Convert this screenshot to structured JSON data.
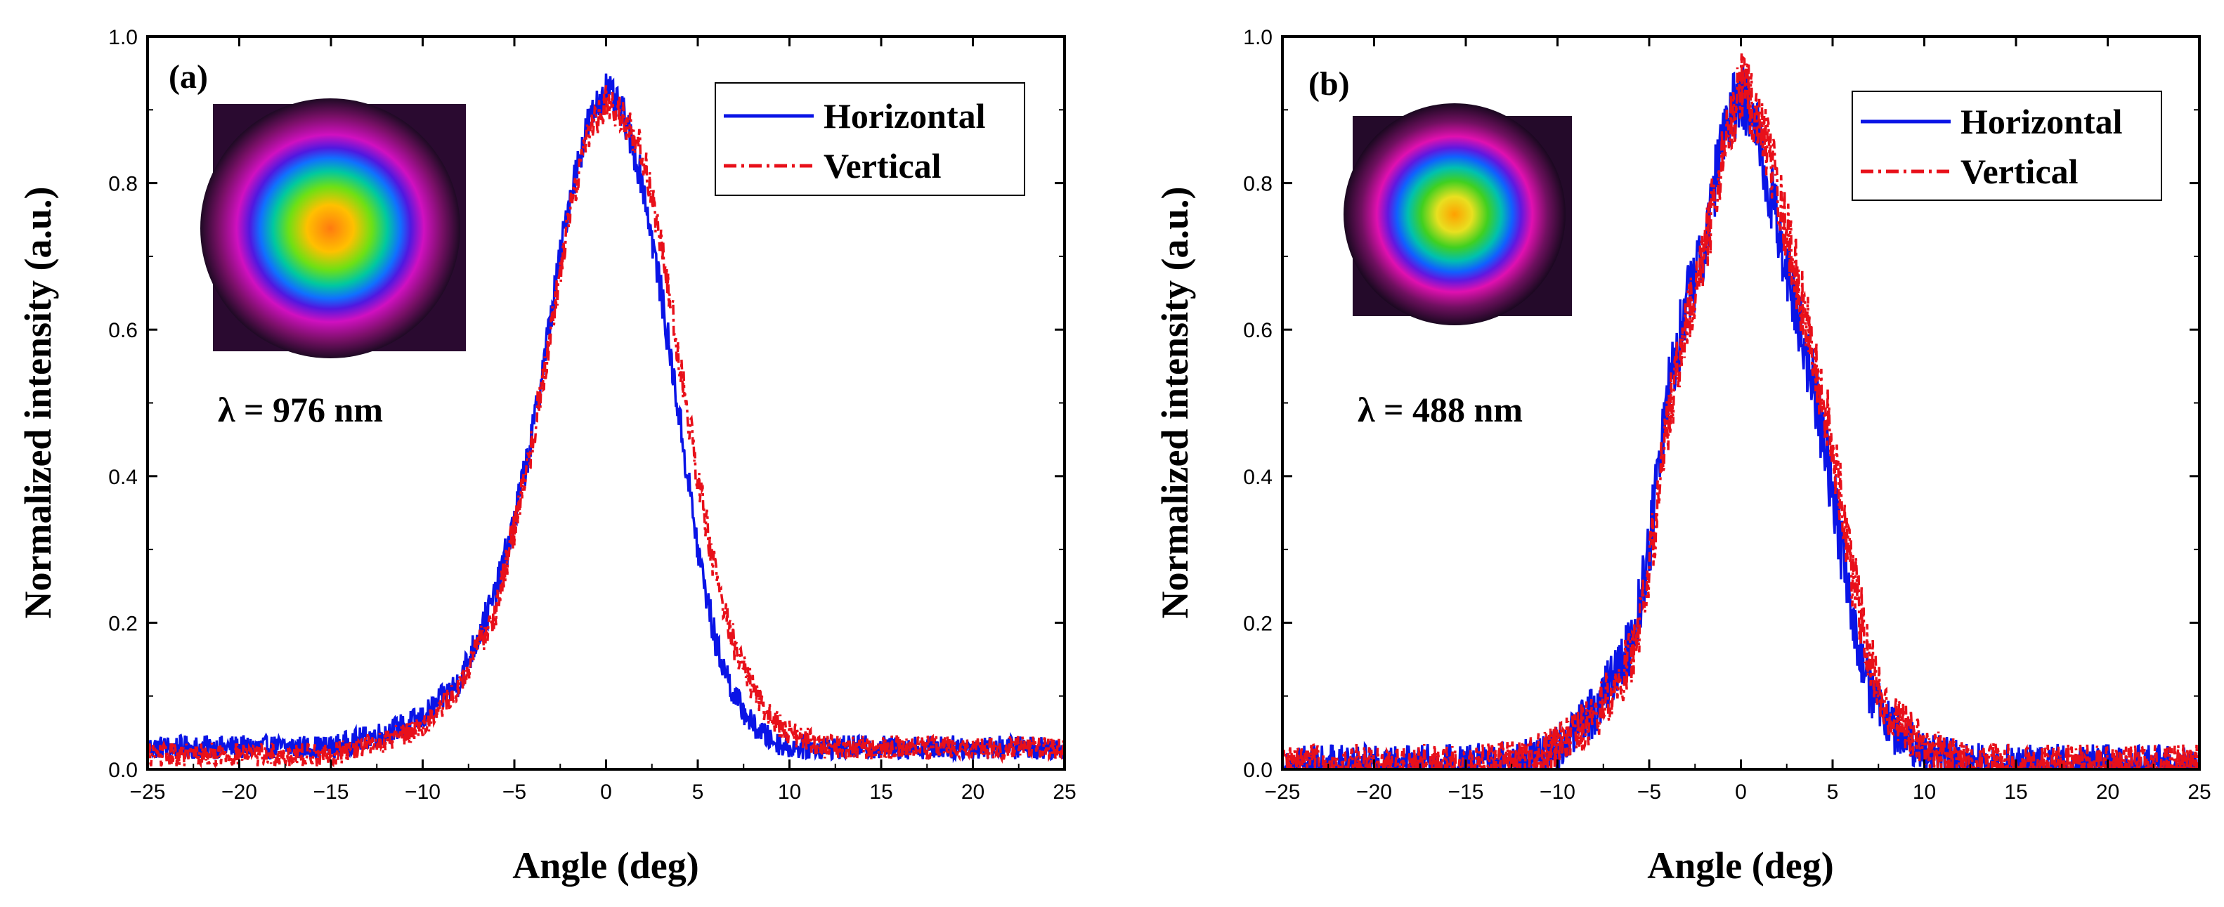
{
  "chart_data": [
    {
      "type": "line",
      "panel_label": "(a)",
      "annotation": "λ = 976 nm",
      "xlabel": "Angle (deg)",
      "ylabel": "Normalized intensity (a.u.)",
      "xlim": [
        -25,
        25
      ],
      "ylim": [
        0,
        1.0
      ],
      "xticks": [
        -25,
        -20,
        -15,
        -10,
        -5,
        0,
        5,
        10,
        15,
        20,
        25
      ],
      "xtick_labels": [
        "−25",
        "−20",
        "−15",
        "−10",
        "−5",
        "0",
        "5",
        "10",
        "15",
        "20",
        "25"
      ],
      "yticks": [
        0,
        0.2,
        0.4,
        0.6,
        0.8,
        1.0
      ],
      "ytick_labels": [
        "0.0",
        "0.2",
        "0.4",
        "0.6",
        "0.8",
        "1.0"
      ],
      "legend": {
        "position": "top-right"
      },
      "inset": "beam-profile-image",
      "series": [
        {
          "name": "Horizontal",
          "color": "#0a14e6",
          "style": "solid",
          "x": [
            -25,
            -20,
            -15,
            -12,
            -10,
            -8,
            -6,
            -5,
            -4,
            -3,
            -2,
            -1,
            0,
            1,
            2,
            3,
            4,
            5,
            6,
            7,
            8,
            9,
            10,
            11,
            12,
            15,
            20,
            25
          ],
          "y": [
            0.03,
            0.03,
            0.03,
            0.05,
            0.07,
            0.12,
            0.24,
            0.34,
            0.46,
            0.62,
            0.78,
            0.88,
            0.93,
            0.89,
            0.8,
            0.65,
            0.48,
            0.3,
            0.17,
            0.1,
            0.06,
            0.04,
            0.03,
            0.03,
            0.03,
            0.03,
            0.03,
            0.03
          ],
          "noise": 0.018
        },
        {
          "name": "Vertical",
          "color": "#e8101a",
          "style": "dash-dot",
          "x": [
            -25,
            -20,
            -15,
            -12,
            -10,
            -8,
            -6,
            -5,
            -4,
            -3,
            -2,
            -1,
            0,
            1,
            2,
            3,
            4,
            5,
            6,
            7,
            8,
            9,
            10,
            11,
            12,
            15,
            20,
            25
          ],
          "y": [
            0.02,
            0.02,
            0.02,
            0.04,
            0.06,
            0.11,
            0.22,
            0.33,
            0.45,
            0.6,
            0.76,
            0.87,
            0.91,
            0.89,
            0.84,
            0.72,
            0.56,
            0.4,
            0.26,
            0.17,
            0.11,
            0.07,
            0.05,
            0.04,
            0.03,
            0.03,
            0.03,
            0.03
          ],
          "noise": 0.018
        }
      ]
    },
    {
      "type": "line",
      "panel_label": "(b)",
      "annotation": "λ = 488 nm",
      "xlabel": "Angle (deg)",
      "ylabel": "Normalized intensity (a.u.)",
      "xlim": [
        -25,
        25
      ],
      "ylim": [
        0,
        1.0
      ],
      "xticks": [
        -25,
        -20,
        -15,
        -10,
        -5,
        0,
        5,
        10,
        15,
        20,
        25
      ],
      "xtick_labels": [
        "−25",
        "−20",
        "−15",
        "−10",
        "−5",
        "0",
        "5",
        "10",
        "15",
        "20",
        "25"
      ],
      "yticks": [
        0,
        0.2,
        0.4,
        0.6,
        0.8,
        1.0
      ],
      "ytick_labels": [
        "0.0",
        "0.2",
        "0.4",
        "0.6",
        "0.8",
        "1.0"
      ],
      "legend": {
        "position": "top-right"
      },
      "inset": "beam-profile-image",
      "series": [
        {
          "name": "Horizontal",
          "color": "#0a14e6",
          "style": "solid",
          "x": [
            -25,
            -15,
            -12,
            -10,
            -8,
            -6,
            -5,
            -4,
            -3,
            -2,
            -1,
            0,
            1,
            2,
            3,
            4,
            5,
            6,
            7,
            8,
            10,
            12,
            15,
            25
          ],
          "y": [
            0.005,
            0.005,
            0.01,
            0.03,
            0.08,
            0.17,
            0.3,
            0.52,
            0.63,
            0.72,
            0.86,
            0.93,
            0.86,
            0.74,
            0.63,
            0.52,
            0.38,
            0.22,
            0.11,
            0.06,
            0.02,
            0.01,
            0.005,
            0.005
          ],
          "noise": 0.035
        },
        {
          "name": "Vertical",
          "color": "#e8101a",
          "style": "dash-dot",
          "x": [
            -25,
            -15,
            -12,
            -10,
            -8,
            -6,
            -5,
            -4,
            -3,
            -2,
            -1,
            0,
            1,
            2,
            3,
            4,
            5,
            6,
            7,
            8,
            10,
            12,
            15,
            25
          ],
          "y": [
            0.005,
            0.005,
            0.01,
            0.03,
            0.07,
            0.15,
            0.27,
            0.48,
            0.6,
            0.7,
            0.84,
            0.93,
            0.89,
            0.79,
            0.68,
            0.56,
            0.44,
            0.28,
            0.15,
            0.08,
            0.03,
            0.01,
            0.005,
            0.005
          ],
          "noise": 0.035
        }
      ]
    }
  ]
}
